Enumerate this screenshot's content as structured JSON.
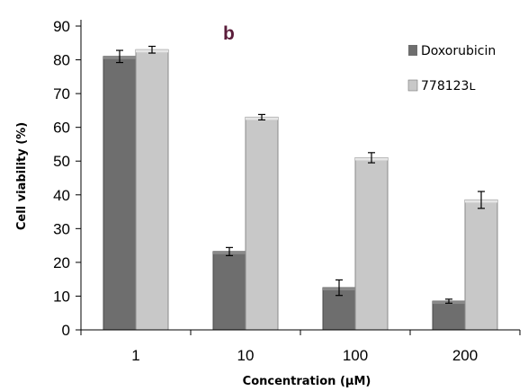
{
  "chart_data": {
    "type": "bar",
    "panel_label": "b",
    "xlabel": "Concentration (µM)",
    "ylabel": "Cell viability (%)",
    "categories": [
      "1",
      "10",
      "100",
      "200"
    ],
    "ylim": [
      0,
      90
    ],
    "yticks": [
      0,
      10,
      20,
      30,
      40,
      50,
      60,
      70,
      80,
      90
    ],
    "grid": false,
    "legend_position": "top-right",
    "series": [
      {
        "name": "Doxorubicin",
        "values": [
          81,
          23.2,
          12.5,
          8.5
        ],
        "errors": [
          1.8,
          1.2,
          2.3,
          0.6
        ],
        "color": "#6e6e6e"
      },
      {
        "name": "778123ʟ",
        "values": [
          83,
          63,
          51,
          38.5
        ],
        "errors": [
          1.0,
          0.8,
          1.5,
          2.5
        ],
        "color": "#c8c8c8"
      }
    ]
  }
}
